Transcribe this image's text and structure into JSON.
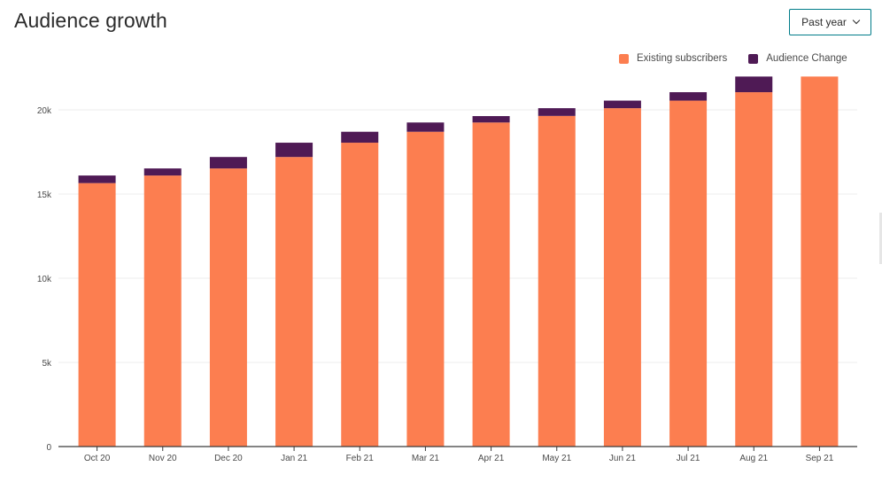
{
  "title": "Audience growth",
  "range_select": {
    "label": "Past year",
    "icon": "chevron-down-icon",
    "border_color": "#007c89"
  },
  "legend": [
    {
      "label": "Existing subscribers",
      "color": "#fc7e50"
    },
    {
      "label": "Audience Change",
      "color": "#4f1a55"
    }
  ],
  "chart_data": {
    "type": "bar",
    "stacked": true,
    "categories": [
      "Oct 20",
      "Nov 20",
      "Dec 20",
      "Jan 21",
      "Feb 21",
      "Mar 21",
      "Apr 21",
      "May 21",
      "Jun 21",
      "Jul 21",
      "Aug 21",
      "Sep 21"
    ],
    "series": [
      {
        "name": "Existing subscribers",
        "color": "#fc7e50",
        "values": [
          15650,
          16100,
          16520,
          17200,
          18050,
          18700,
          19250,
          19640,
          20100,
          20550,
          21050,
          21980
        ]
      },
      {
        "name": "Audience Change",
        "color": "#4f1a55",
        "values": [
          450,
          420,
          680,
          850,
          650,
          550,
          380,
          460,
          450,
          500,
          930,
          0
        ]
      }
    ],
    "yticks": [
      0,
      5000,
      10000,
      15000,
      20000
    ],
    "ytick_labels": [
      "0",
      "5k",
      "10k",
      "15k",
      "20k"
    ],
    "ylim": [
      0,
      22000
    ],
    "grid": true,
    "legend_position": "top-right",
    "xlabel": "",
    "ylabel": ""
  }
}
